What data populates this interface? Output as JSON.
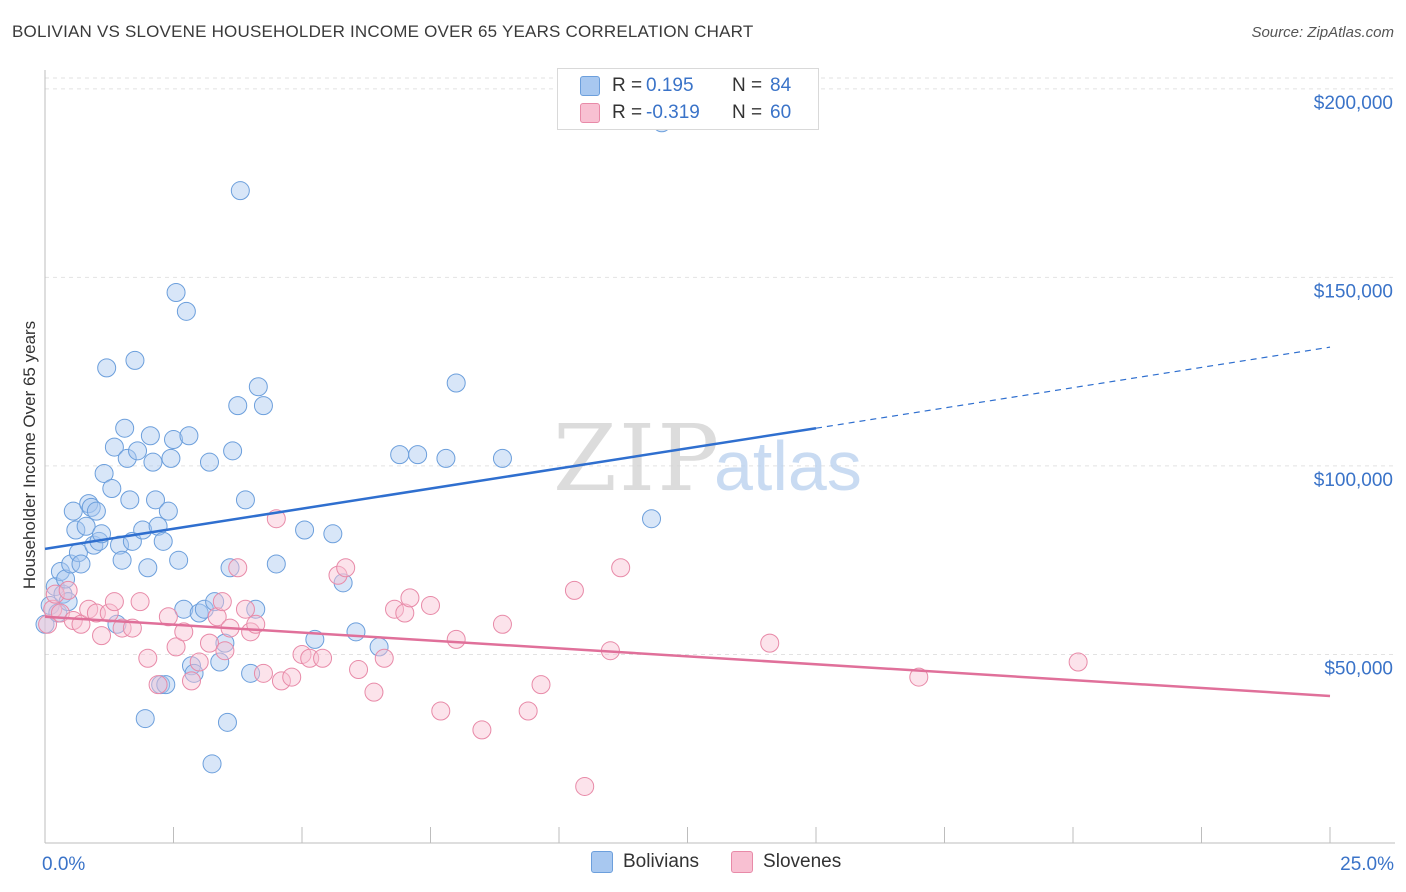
{
  "title": "BOLIVIAN VS SLOVENE HOUSEHOLDER INCOME OVER 65 YEARS CORRELATION CHART",
  "source": "Source: ZipAtlas.com",
  "watermark": {
    "zip": "ZIP",
    "atlas": "atlas"
  },
  "legend": {
    "rows": [
      {
        "r_label": "R =",
        "r_value": "0.195",
        "n_label": "N =",
        "n_value": "84",
        "color": "#a8c8f0",
        "border": "#6c9fdc"
      },
      {
        "r_label": "R =",
        "r_value": "-0.319",
        "n_label": "N =",
        "n_value": "60",
        "color": "#f8c0d2",
        "border": "#e88aa8"
      }
    ]
  },
  "bottom_legend": {
    "series1": "Bolivians",
    "series2": "Slovenes"
  },
  "colors": {
    "blue_fill": "#a8c8f0",
    "blue_stroke": "#6c9fdc",
    "blue_line": "#2f6fcf",
    "pink_fill": "#f8c0d2",
    "pink_stroke": "#e88aa8",
    "pink_line": "#e0709a",
    "axis_text": "#3a73c8",
    "grid": "#e2e2e2"
  },
  "chart_data": {
    "type": "scatter",
    "title": "BOLIVIAN VS SLOVENE HOUSEHOLDER INCOME OVER 65 YEARS CORRELATION CHART",
    "xlabel": "",
    "ylabel": "Householder Income Over 65 years",
    "xlim": [
      0,
      25
    ],
    "ylim": [
      0,
      205000
    ],
    "x_tick_labels": {
      "min": "0.0%",
      "max": "25.0%"
    },
    "y_ticks": [
      50000,
      100000,
      150000,
      200000
    ],
    "y_tick_labels": [
      "$50,000",
      "$100,000",
      "$150,000",
      "$200,000"
    ],
    "grid": true,
    "legend_position": "top-center",
    "series": [
      {
        "name": "Bolivians",
        "r": 0.195,
        "n": 84,
        "trend": {
          "x0": 0,
          "y0": 78000,
          "x1": 15,
          "y1": 110000,
          "x_dashed_end": 25,
          "y_dashed_end": 131500
        },
        "points": [
          [
            0.0,
            58000
          ],
          [
            0.1,
            63000
          ],
          [
            0.2,
            68000
          ],
          [
            0.25,
            61000
          ],
          [
            0.3,
            72000
          ],
          [
            0.35,
            66000
          ],
          [
            0.4,
            70000
          ],
          [
            0.45,
            64000
          ],
          [
            0.5,
            74000
          ],
          [
            0.55,
            88000
          ],
          [
            0.6,
            83000
          ],
          [
            0.65,
            77000
          ],
          [
            0.7,
            74000
          ],
          [
            0.8,
            84000
          ],
          [
            0.85,
            90000
          ],
          [
            0.9,
            89000
          ],
          [
            0.95,
            79000
          ],
          [
            1.0,
            88000
          ],
          [
            1.05,
            80000
          ],
          [
            1.1,
            82000
          ],
          [
            1.15,
            98000
          ],
          [
            1.2,
            126000
          ],
          [
            1.3,
            94000
          ],
          [
            1.35,
            105000
          ],
          [
            1.4,
            58000
          ],
          [
            1.45,
            79000
          ],
          [
            1.5,
            75000
          ],
          [
            1.55,
            110000
          ],
          [
            1.6,
            102000
          ],
          [
            1.65,
            91000
          ],
          [
            1.7,
            80000
          ],
          [
            1.75,
            128000
          ],
          [
            1.8,
            104000
          ],
          [
            1.9,
            83000
          ],
          [
            1.95,
            33000
          ],
          [
            2.0,
            73000
          ],
          [
            2.05,
            108000
          ],
          [
            2.1,
            101000
          ],
          [
            2.15,
            91000
          ],
          [
            2.2,
            84000
          ],
          [
            2.25,
            42000
          ],
          [
            2.3,
            80000
          ],
          [
            2.35,
            42000
          ],
          [
            2.4,
            88000
          ],
          [
            2.45,
            102000
          ],
          [
            2.5,
            107000
          ],
          [
            2.55,
            146000
          ],
          [
            2.6,
            75000
          ],
          [
            2.7,
            62000
          ],
          [
            2.75,
            141000
          ],
          [
            2.8,
            108000
          ],
          [
            2.85,
            47000
          ],
          [
            2.9,
            45000
          ],
          [
            3.0,
            61000
          ],
          [
            3.1,
            62000
          ],
          [
            3.2,
            101000
          ],
          [
            3.25,
            21000
          ],
          [
            3.3,
            64000
          ],
          [
            3.4,
            48000
          ],
          [
            3.5,
            53000
          ],
          [
            3.55,
            32000
          ],
          [
            3.6,
            73000
          ],
          [
            3.65,
            104000
          ],
          [
            3.75,
            116000
          ],
          [
            3.8,
            173000
          ],
          [
            3.9,
            91000
          ],
          [
            4.0,
            45000
          ],
          [
            4.1,
            62000
          ],
          [
            4.15,
            121000
          ],
          [
            4.25,
            116000
          ],
          [
            4.5,
            74000
          ],
          [
            5.05,
            83000
          ],
          [
            5.25,
            54000
          ],
          [
            5.6,
            82000
          ],
          [
            5.8,
            69000
          ],
          [
            6.05,
            56000
          ],
          [
            6.5,
            52000
          ],
          [
            7.25,
            103000
          ],
          [
            7.8,
            102000
          ],
          [
            8.0,
            122000
          ],
          [
            8.9,
            102000
          ],
          [
            11.8,
            86000
          ],
          [
            12.0,
            191000
          ],
          [
            6.9,
            103000
          ]
        ]
      },
      {
        "name": "Slovenes",
        "r": -0.319,
        "n": 60,
        "trend": {
          "x0": 0,
          "y0": 60000,
          "x1": 25,
          "y1": 39000
        },
        "points": [
          [
            0.05,
            58000
          ],
          [
            0.15,
            62000
          ],
          [
            0.2,
            66000
          ],
          [
            0.3,
            61000
          ],
          [
            0.45,
            67000
          ],
          [
            0.55,
            59000
          ],
          [
            0.7,
            58000
          ],
          [
            0.85,
            62000
          ],
          [
            1.0,
            61000
          ],
          [
            1.1,
            55000
          ],
          [
            1.25,
            61000
          ],
          [
            1.35,
            64000
          ],
          [
            1.5,
            57000
          ],
          [
            1.7,
            57000
          ],
          [
            1.85,
            64000
          ],
          [
            2.0,
            49000
          ],
          [
            2.2,
            42000
          ],
          [
            2.4,
            60000
          ],
          [
            2.55,
            52000
          ],
          [
            2.7,
            56000
          ],
          [
            2.85,
            43000
          ],
          [
            3.0,
            48000
          ],
          [
            3.2,
            53000
          ],
          [
            3.35,
            60000
          ],
          [
            3.45,
            64000
          ],
          [
            3.5,
            51000
          ],
          [
            3.6,
            57000
          ],
          [
            3.75,
            73000
          ],
          [
            3.9,
            62000
          ],
          [
            4.0,
            56000
          ],
          [
            4.1,
            58000
          ],
          [
            4.25,
            45000
          ],
          [
            4.5,
            86000
          ],
          [
            4.6,
            43000
          ],
          [
            4.8,
            44000
          ],
          [
            5.0,
            50000
          ],
          [
            5.15,
            49000
          ],
          [
            5.4,
            49000
          ],
          [
            5.7,
            71000
          ],
          [
            5.85,
            73000
          ],
          [
            6.1,
            46000
          ],
          [
            6.4,
            40000
          ],
          [
            6.6,
            49000
          ],
          [
            6.8,
            62000
          ],
          [
            7.0,
            61000
          ],
          [
            7.1,
            65000
          ],
          [
            7.5,
            63000
          ],
          [
            7.7,
            35000
          ],
          [
            8.0,
            54000
          ],
          [
            8.5,
            30000
          ],
          [
            8.9,
            58000
          ],
          [
            9.4,
            35000
          ],
          [
            9.65,
            42000
          ],
          [
            10.3,
            67000
          ],
          [
            10.5,
            15000
          ],
          [
            11.0,
            51000
          ],
          [
            11.2,
            73000
          ],
          [
            14.1,
            53000
          ],
          [
            17.0,
            44000
          ],
          [
            20.1,
            48000
          ]
        ]
      }
    ]
  }
}
